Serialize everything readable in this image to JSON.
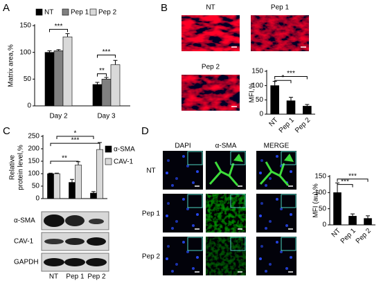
{
  "panel_labels": [
    "A",
    "B",
    "C",
    "D"
  ],
  "panel_b_images": [
    "NT",
    "Pep 1",
    "Pep 2"
  ],
  "panel_c_blots": [
    "α-SMA",
    "CAV-1",
    "GAPDH"
  ],
  "panel_d_images": {
    "columns": [
      "DAPI",
      "α-SMA",
      "MERGE"
    ],
    "rows": [
      "NT",
      "Pep 1",
      "Pep 2"
    ]
  },
  "chart_data": [
    {
      "type": "bar",
      "ylabel": [
        "Matrix area,%"
      ],
      "categories": [
        "Day 2",
        "Day 3"
      ],
      "series": [
        {
          "name": "NT",
          "color": "#000000",
          "values": [
            100,
            40
          ],
          "errors": [
            3,
            4
          ]
        },
        {
          "name": "Pep 1",
          "color": "#808080",
          "values": [
            103,
            50
          ],
          "errors": [
            2,
            3
          ]
        },
        {
          "name": "Pep 2",
          "color": "#d9d9d9",
          "values": [
            129,
            77
          ],
          "errors": [
            6,
            8
          ]
        }
      ],
      "ylim": [
        0,
        150
      ],
      "yticks": [
        0,
        50,
        100,
        150
      ],
      "legend": "top",
      "annotations": [
        "***",
        "**",
        "***"
      ]
    },
    {
      "type": "bar",
      "ylabel": [
        "MFI,%"
      ],
      "categories": [
        "NT",
        "Pep 1",
        "Pep 2"
      ],
      "values": [
        100,
        47,
        28
      ],
      "errors": [
        15,
        12,
        6
      ],
      "color": "#000000",
      "ylim": [
        0,
        150
      ],
      "yticks": [
        0,
        50,
        100,
        150
      ],
      "annotations": [
        "*",
        "***"
      ]
    },
    {
      "type": "bar",
      "ylabel": [
        "Relative",
        "protein level,%"
      ],
      "categories": [
        "NT",
        "Pep 1",
        "Pep 2"
      ],
      "series": [
        {
          "name": "α-SMA",
          "color": "#000000",
          "values": [
            100,
            65,
            22
          ],
          "errors": [
            2,
            12,
            6
          ]
        },
        {
          "name": "CAV-1",
          "color": "#d9d9d9",
          "values": [
            100,
            135,
            197
          ],
          "errors": [
            2,
            13,
            28
          ]
        }
      ],
      "ylim": [
        0,
        250
      ],
      "yticks": [
        0,
        50,
        100,
        150,
        200,
        250
      ],
      "legend": "right",
      "annotations": [
        "**",
        "***",
        "*"
      ]
    },
    {
      "type": "bar",
      "ylabel": [
        "MFI (au),%"
      ],
      "categories": [
        "NT",
        "Pep 1",
        "Pep 2"
      ],
      "values": [
        100,
        27,
        20
      ],
      "errors": [
        30,
        7,
        8
      ],
      "color": "#000000",
      "ylim": [
        0,
        150
      ],
      "yticks": [
        0,
        50,
        100,
        150
      ],
      "annotations": [
        "***",
        "***"
      ]
    }
  ]
}
